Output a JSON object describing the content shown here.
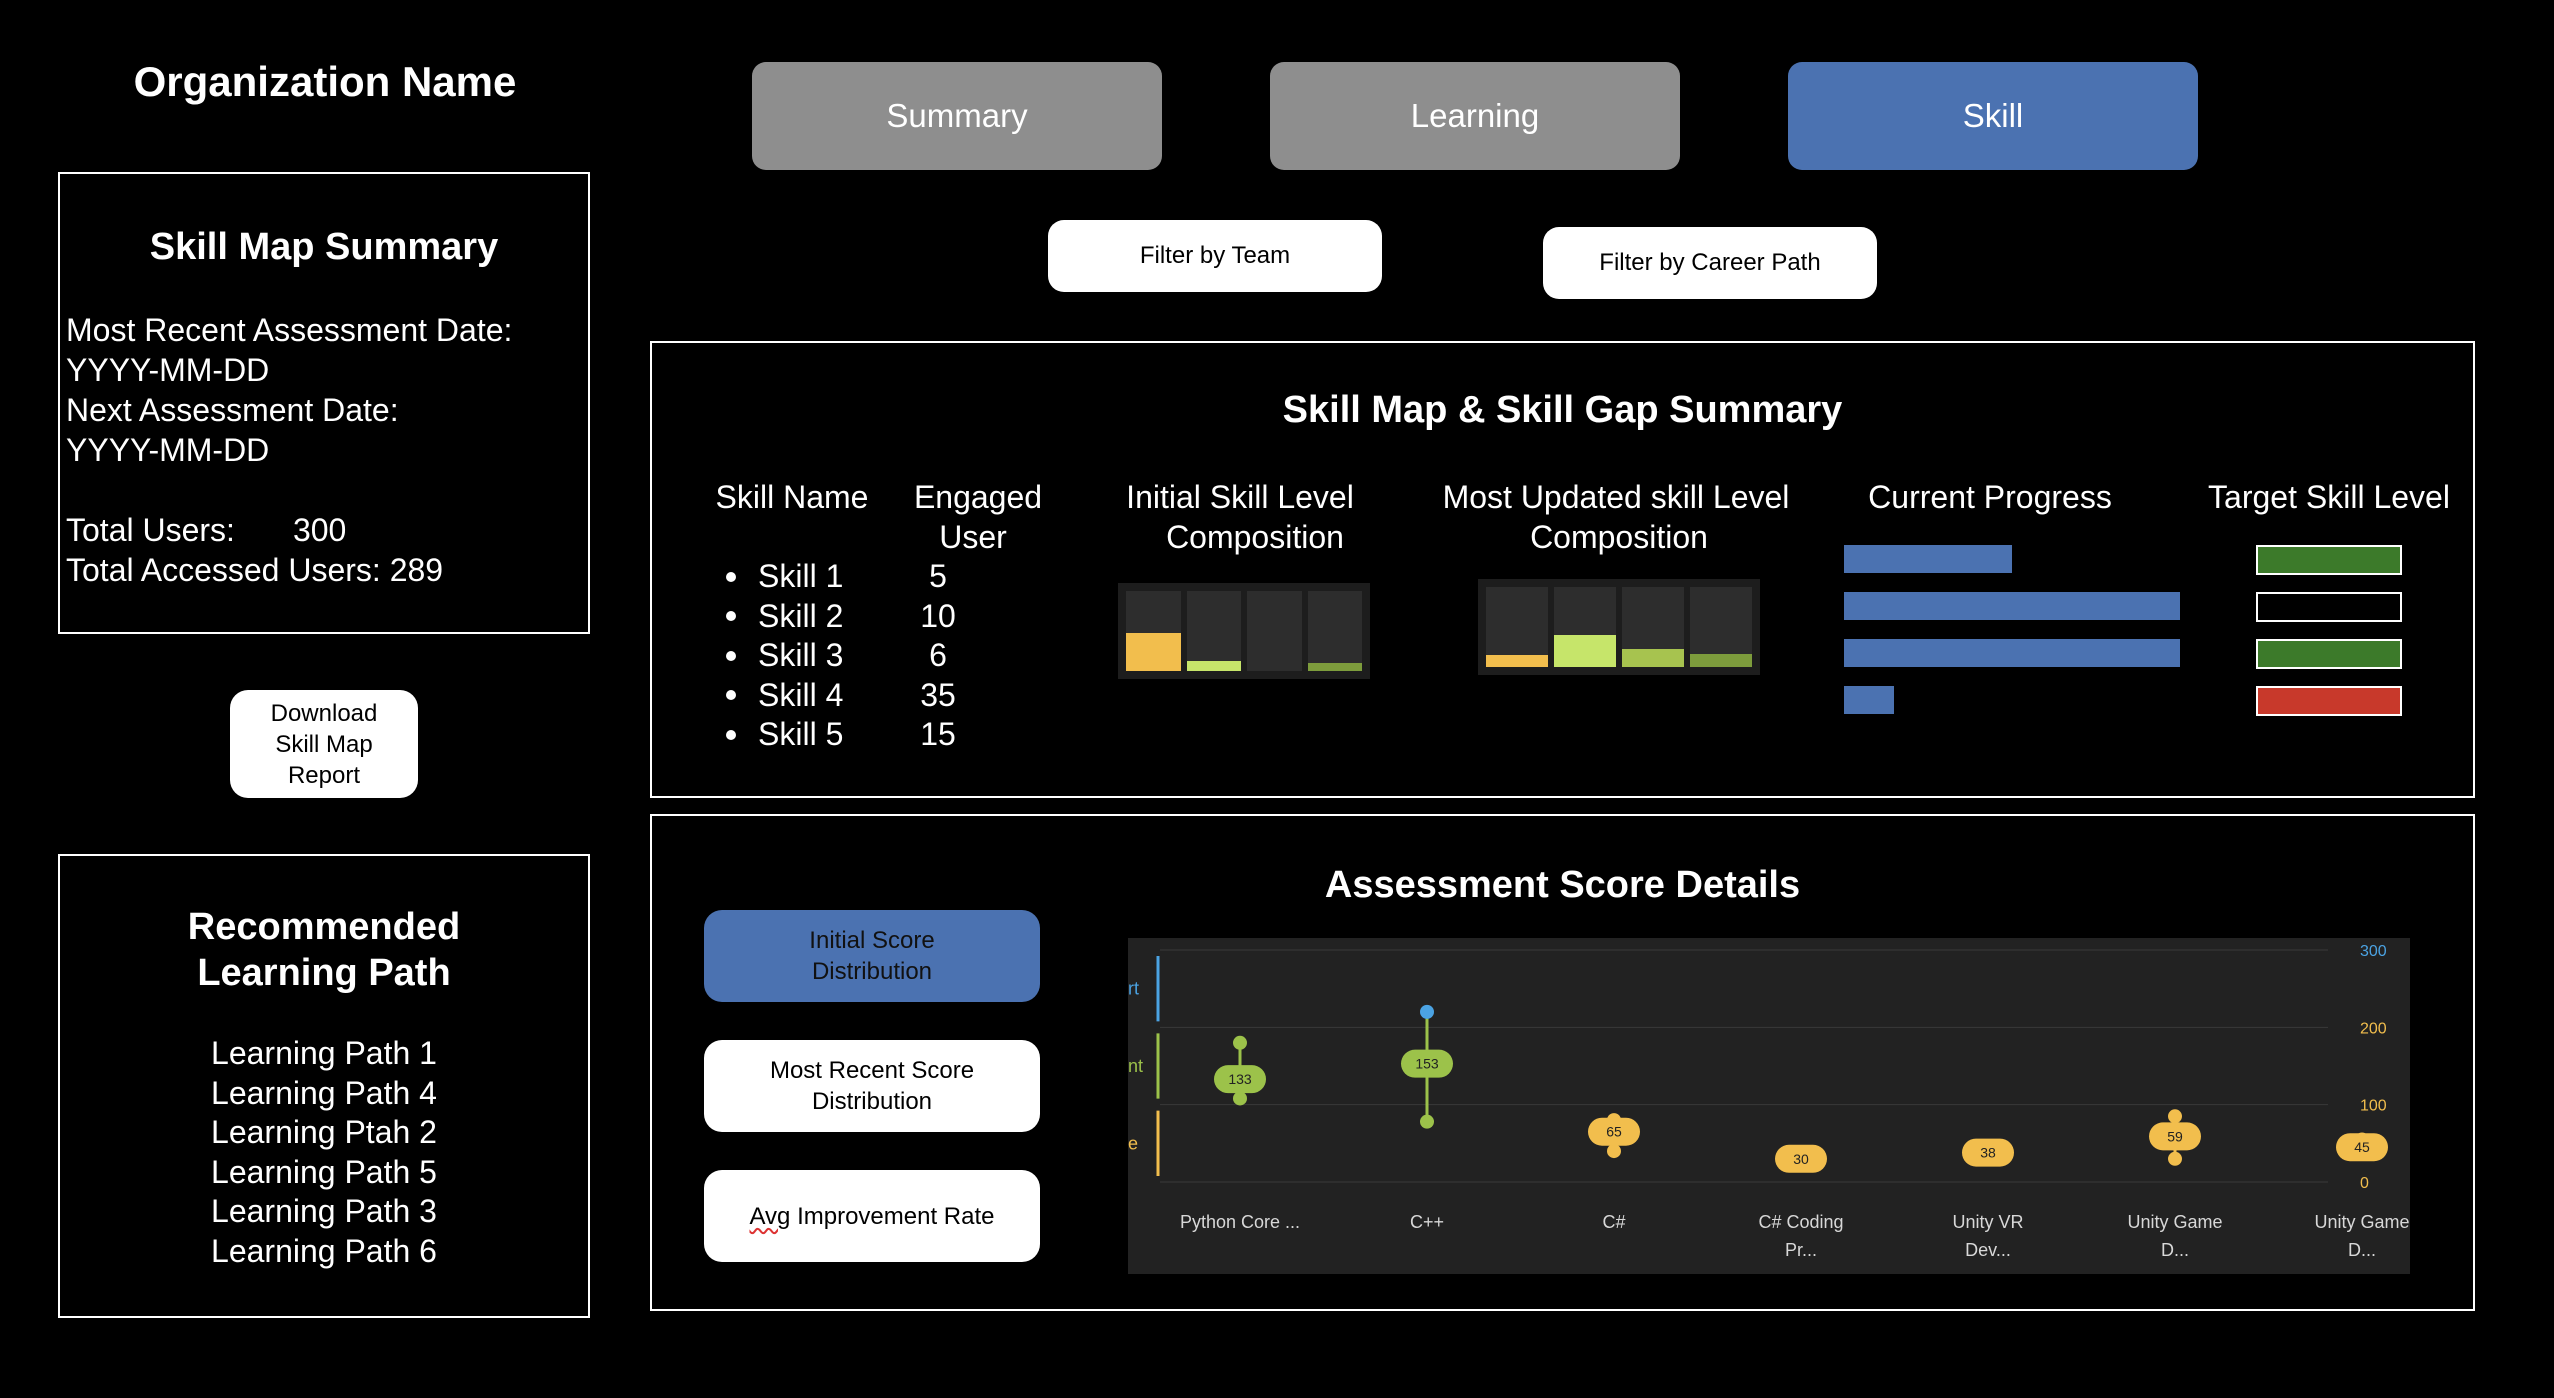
{
  "org": {
    "name": "Organization Name"
  },
  "tabs": [
    {
      "label": "Summary",
      "active": false
    },
    {
      "label": "Learning",
      "active": false
    },
    {
      "label": "Skill",
      "active": true
    }
  ],
  "filters": {
    "team": "Filter by Team",
    "career": "Filter by Career Path"
  },
  "summary": {
    "title": "Skill Map Summary",
    "recent_label": "Most Recent Assessment Date:",
    "recent_value": "YYYY-MM-DD",
    "next_label": "Next Assessment Date:",
    "next_value": "YYYY-MM-DD",
    "total_users_label": "Total Users:",
    "total_users_value": "300",
    "accessed_label": "Total Accessed Users:",
    "accessed_value": "289"
  },
  "download": {
    "label_line1": "Download",
    "label_line2": "Skill Map",
    "label_line3": "Report"
  },
  "recommended": {
    "title_line1": "Recommended",
    "title_line2": "Learning Path",
    "paths": [
      "Learning Path 1",
      "Learning Path 4",
      "Learning Ptah 2",
      "Learning Path 5",
      "Learning Path 3",
      "Learning Path 6"
    ]
  },
  "gap": {
    "title": "Skill Map & Skill Gap Summary",
    "col_skill": "Skill Name",
    "col_engaged_1": "Engaged",
    "col_engaged_2": "User",
    "col_initial_1": "Initial Skill Level",
    "col_initial_2": "Composition",
    "col_updated_1": "Most Updated skill Level",
    "col_updated_2": "Composition",
    "col_progress": "Current Progress",
    "col_target": "Target Skill Level",
    "skills": [
      {
        "name": "Skill 1",
        "engaged": "5",
        "progress": 0.5,
        "target_color": "#3c7a2a"
      },
      {
        "name": "Skill 2",
        "engaged": "10",
        "progress": 1.0,
        "target_color": "#000000"
      },
      {
        "name": "Skill 3",
        "engaged": "6",
        "progress": 1.0,
        "target_color": "#3c7a2a"
      },
      {
        "name": "Skill 4",
        "engaged": "35",
        "progress": 0.15,
        "target_color": "#c8392b"
      },
      {
        "name": "Skill 5",
        "engaged": "15",
        "progress": null,
        "target_color": null
      }
    ],
    "initial_composition": [
      {
        "level": 0.48,
        "color": "#f2be4d"
      },
      {
        "level": 0.12,
        "color": "#c6e56a"
      },
      {
        "level": 0.0,
        "color": "#a7c34f"
      },
      {
        "level": 0.1,
        "color": "#7d9c3c"
      }
    ],
    "updated_composition": [
      {
        "level": 0.15,
        "color": "#f2be4d"
      },
      {
        "level": 0.4,
        "color": "#c6e56a"
      },
      {
        "level": 0.22,
        "color": "#a7c34f"
      },
      {
        "level": 0.16,
        "color": "#7d9c3c"
      }
    ]
  },
  "score": {
    "title": "Assessment Score Details",
    "btn_initial_1": "Initial Score",
    "btn_initial_2": "Distribution",
    "btn_recent_1": "Most Recent Score",
    "btn_recent_2": "Distribution",
    "btn_avg": "Avg Improvement Rate",
    "btn_avg_first": "Avg",
    "btn_avg_rest": " Improvement Rate"
  },
  "chart_data": {
    "type": "scatter",
    "title": "",
    "ylim": [
      0,
      300
    ],
    "y_ticks": [
      0,
      100,
      200,
      300
    ],
    "band_labels": [
      "rt",
      "nt",
      "e"
    ],
    "band_colors": [
      "#4ba3e3",
      "#9cc24a",
      "#f2be4d"
    ],
    "categories": [
      {
        "line1": "Python Core ...",
        "line2": ""
      },
      {
        "line1": "C++",
        "line2": ""
      },
      {
        "line1": "C#",
        "line2": ""
      },
      {
        "line1": "C# Coding",
        "line2": "Pr..."
      },
      {
        "line1": "Unity VR",
        "line2": "Dev..."
      },
      {
        "line1": "Unity Game",
        "line2": "D..."
      },
      {
        "line1": "Unity Game",
        "line2": "D..."
      }
    ],
    "labels": [
      133,
      153,
      65,
      30,
      38,
      59,
      45
    ],
    "label_colors": [
      "#9cc24a",
      "#9cc24a",
      "#f2be4d",
      "#f2be4d",
      "#f2be4d",
      "#f2be4d",
      "#f2be4d"
    ],
    "whisker_low": [
      108,
      78,
      40,
      30,
      38,
      30,
      40
    ],
    "whisker_high": [
      180,
      220,
      80,
      30,
      45,
      85,
      55
    ],
    "whisker_high_colors": [
      "#9cc24a",
      "#4ba3e3",
      "#f2be4d",
      "#f2be4d",
      "#f2be4d",
      "#f2be4d",
      "#f2be4d"
    ],
    "grid": true
  }
}
